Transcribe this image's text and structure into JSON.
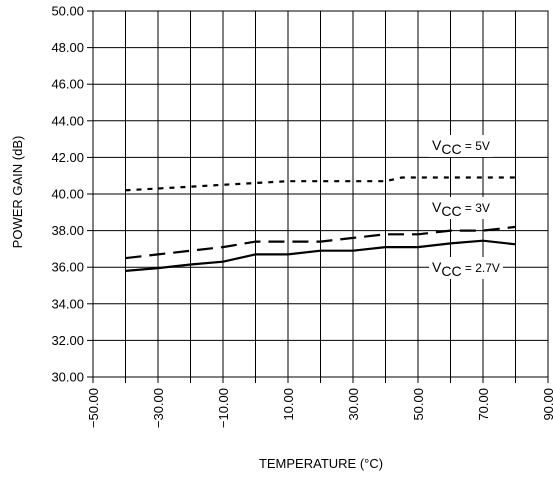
{
  "chart_data": {
    "type": "line",
    "title": "",
    "xlabel": "TEMPERATURE (°C)",
    "ylabel": "POWER GAIN (dB)",
    "xlim": [
      -50,
      90
    ],
    "ylim": [
      30,
      50
    ],
    "x_ticks": [
      -50,
      -40,
      -30,
      -20,
      -10,
      0,
      10,
      20,
      30,
      40,
      50,
      60,
      70,
      80,
      90
    ],
    "x_tick_labels": [
      "−50.00",
      "",
      "−30.00",
      "",
      "−10.00",
      "",
      "10.00",
      "",
      "30.00",
      "",
      "50.00",
      "",
      "70.00",
      "",
      "90.00"
    ],
    "y_ticks": [
      30,
      32,
      34,
      36,
      38,
      40,
      42,
      44,
      46,
      48,
      50
    ],
    "y_tick_labels": [
      "30.00",
      "32.00",
      "34.00",
      "36.00",
      "38.00",
      "40.00",
      "42.00",
      "44.00",
      "46.00",
      "48.00",
      "50.00"
    ],
    "grid": true,
    "series": [
      {
        "name": "VCC = 5V",
        "label_main": "V",
        "label_sub": "CC",
        "label_rest": " = 5V",
        "style": "dotted",
        "x": [
          -40,
          -30,
          -20,
          -10,
          0,
          10,
          20,
          30,
          40,
          45,
          50,
          60,
          70,
          80
        ],
        "y": [
          40.2,
          40.3,
          40.4,
          40.5,
          40.6,
          40.7,
          40.7,
          40.7,
          40.7,
          40.9,
          40.9,
          40.9,
          40.9,
          40.9
        ]
      },
      {
        "name": "VCC = 3V",
        "label_main": "V",
        "label_sub": "CC",
        "label_rest": " = 3V",
        "style": "dashed",
        "x": [
          -40,
          -30,
          -20,
          -10,
          0,
          10,
          20,
          30,
          40,
          50,
          60,
          70,
          80
        ],
        "y": [
          36.5,
          36.7,
          36.9,
          37.1,
          37.4,
          37.4,
          37.4,
          37.6,
          37.8,
          37.8,
          38.0,
          38.0,
          38.2
        ]
      },
      {
        "name": "VCC = 2.7V",
        "label_main": "V",
        "label_sub": "CC",
        "label_rest": " = 2.7V",
        "style": "solid",
        "x": [
          -40,
          -30,
          -20,
          -10,
          0,
          10,
          20,
          30,
          40,
          50,
          60,
          70,
          80
        ],
        "y": [
          35.8,
          35.95,
          36.15,
          36.3,
          36.7,
          36.7,
          36.9,
          36.9,
          37.1,
          37.1,
          37.3,
          37.45,
          37.25
        ]
      }
    ]
  }
}
